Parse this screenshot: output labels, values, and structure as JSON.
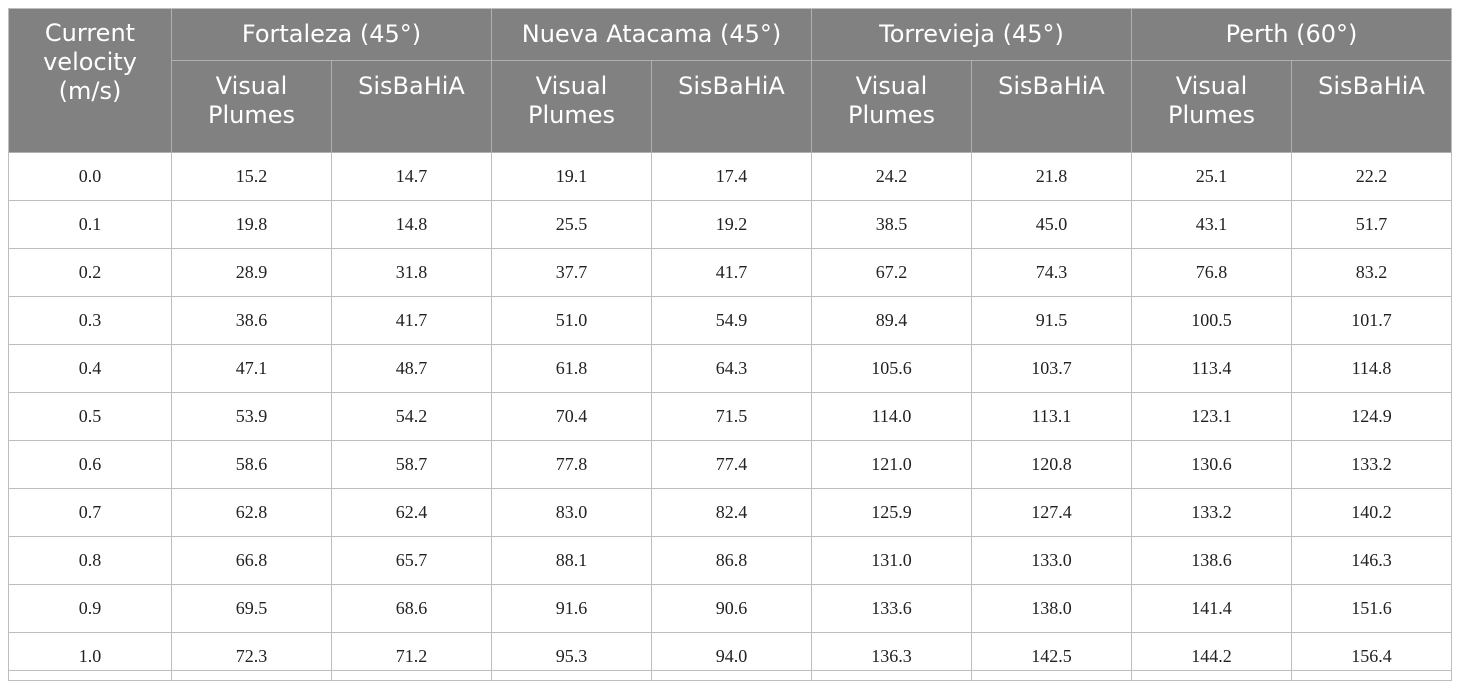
{
  "table": {
    "corner_header": [
      "Current",
      "velocity",
      "(m/s)"
    ],
    "groups": [
      {
        "label": "Fortaleza (45°)",
        "sub": [
          "Visual Plumes",
          "SisBaHiA"
        ]
      },
      {
        "label": "Nueva Atacama (45°)",
        "sub": [
          "Visual Plumes",
          "SisBaHiA"
        ]
      },
      {
        "label": "Torrevieja (45°)",
        "sub": [
          "Visual Plumes",
          "SisBaHiA"
        ]
      },
      {
        "label": "Perth (60°)",
        "sub": [
          "Visual Plumes",
          "SisBaHiA"
        ]
      }
    ],
    "rows": [
      [
        "0.0",
        "15.2",
        "14.7",
        "19.1",
        "17.4",
        "24.2",
        "21.8",
        "25.1",
        "22.2"
      ],
      [
        "0.1",
        "19.8",
        "14.8",
        "25.5",
        "19.2",
        "38.5",
        "45.0",
        "43.1",
        "51.7"
      ],
      [
        "0.2",
        "28.9",
        "31.8",
        "37.7",
        "41.7",
        "67.2",
        "74.3",
        "76.8",
        "83.2"
      ],
      [
        "0.3",
        "38.6",
        "41.7",
        "51.0",
        "54.9",
        "89.4",
        "91.5",
        "100.5",
        "101.7"
      ],
      [
        "0.4",
        "47.1",
        "48.7",
        "61.8",
        "64.3",
        "105.6",
        "103.7",
        "113.4",
        "114.8"
      ],
      [
        "0.5",
        "53.9",
        "54.2",
        "70.4",
        "71.5",
        "114.0",
        "113.1",
        "123.1",
        "124.9"
      ],
      [
        "0.6",
        "58.6",
        "58.7",
        "77.8",
        "77.4",
        "121.0",
        "120.8",
        "130.6",
        "133.2"
      ],
      [
        "0.7",
        "62.8",
        "62.4",
        "83.0",
        "82.4",
        "125.9",
        "127.4",
        "133.2",
        "140.2"
      ],
      [
        "0.8",
        "66.8",
        "65.7",
        "88.1",
        "86.8",
        "131.0",
        "133.0",
        "138.6",
        "146.3"
      ],
      [
        "0.9",
        "69.5",
        "68.6",
        "91.6",
        "90.6",
        "133.6",
        "138.0",
        "141.4",
        "151.6"
      ],
      [
        "1.0",
        "72.3",
        "71.2",
        "95.3",
        "94.0",
        "136.3",
        "142.5",
        "144.2",
        "156.4"
      ]
    ]
  }
}
